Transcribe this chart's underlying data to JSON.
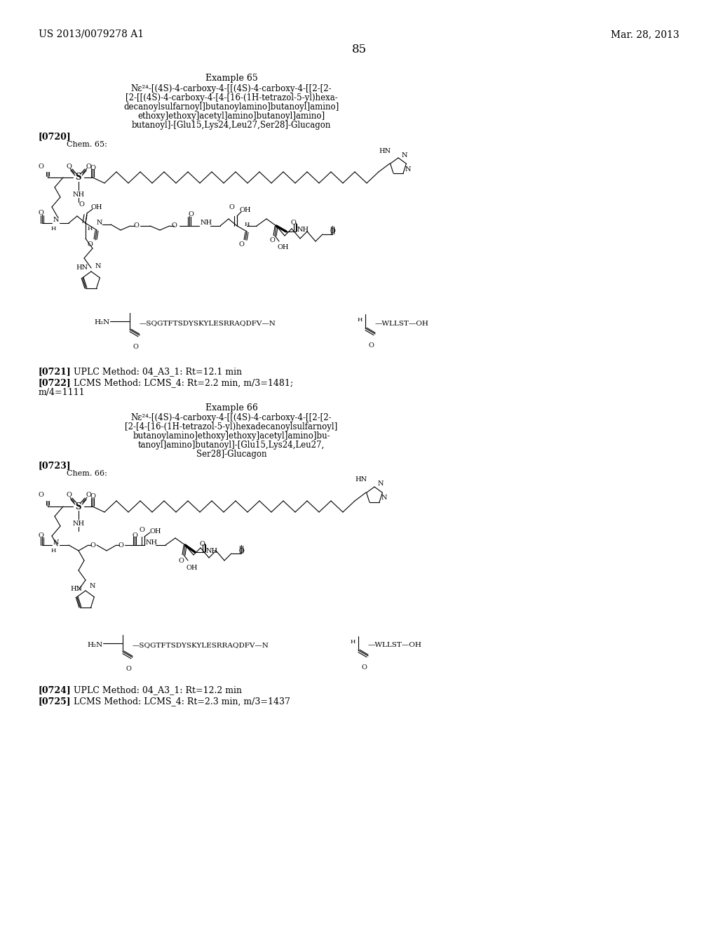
{
  "background_color": "#ffffff",
  "text_color": "#000000",
  "page_number": "85",
  "header_left": "US 2013/0079278 A1",
  "header_right": "Mar. 28, 2013",
  "example65_title": "Example 65",
  "example65_lines": [
    "Nε²⁴-[(4S)-4-carboxy-4-[[(4S)-4-carboxy-4-[[2-[2-",
    "[2-[[(4S)-4-carboxy-4-[4-[16-(1H-tetrazol-5-yl)hexa-",
    "decanoylsulfarnoyl]butanoylamino]butanoyl]amino]",
    "ethoxy]ethoxy]acetyl]amino]butanoyl]amino]",
    "butanoyl]-[Glu15,Lys24,Leu27,Ser28]-Glucagon"
  ],
  "para0720": "[0720]",
  "chem65": "Chem. 65:",
  "para0721": "[0721]",
  "uplc65": "UPLC Method: 04_A3_1: Rt=12.1 min",
  "para0722": "[0722]",
  "lcms65a": "LCMS Method: LCMS_4: Rt=2.2 min, m/3=1481;",
  "lcms65b": "m/4=1111",
  "example66_title": "Example 66",
  "example66_lines": [
    "Nε²⁴-[(4S)-4-carboxy-4-[[(4S)-4-carboxy-4-[[2-[2-",
    "[2-[4-[16-(1H-tetrazol-5-yl)hexadecanoylsulfarnoyl]",
    "butanoylamino]ethoxy]ethoxy]acetyl]amino]bu-",
    "tanoyl]amino]butanoyl]-[Glu15,Lys24,Leu27,",
    "Ser28]-Glucagon"
  ],
  "para0723": "[0723]",
  "chem66": "Chem. 66:",
  "para0724": "[0724]",
  "uplc66": "UPLC Method: 04_A3_1: Rt=12.2 min",
  "para0725": "[0725]",
  "lcms66": "LCMS Method: LCMS_4: Rt=2.3 min, m/3=1437"
}
